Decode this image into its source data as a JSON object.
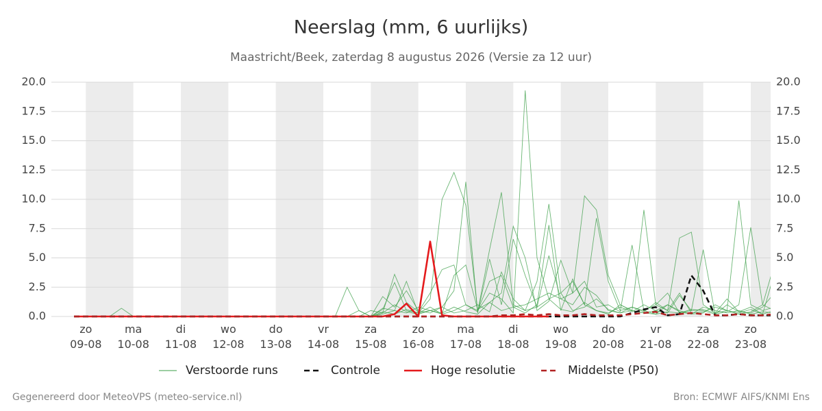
{
  "chart_data": {
    "type": "line",
    "title": "Neerslag (mm, 6 uurlijks)",
    "subtitle": "Maastricht/Beek, zaterdag  8 augustus 2026 (Versie za 12 uur)",
    "footer_left": "Gegenereerd door MeteoVPS (meteo-service.nl)",
    "footer_right": "Bron: ECMWF AIFS/KNMI Ens",
    "categories": [
      null,
      "zo\n09-08",
      null,
      null,
      null,
      "ma\n10-08",
      null,
      null,
      null,
      "di\n11-08",
      null,
      null,
      null,
      "wo\n12-08",
      null,
      null,
      null,
      "do\n13-08",
      null,
      null,
      null,
      "vr\n14-08",
      null,
      null,
      null,
      "za\n15-08",
      null,
      null,
      null,
      "zo\n16-08",
      null,
      null,
      null,
      "ma\n17-08",
      null,
      null,
      null,
      "di\n18-08",
      null,
      null,
      null,
      "wo\n19-08",
      null,
      null,
      null,
      "do\n20-08",
      null,
      null,
      null,
      "vr\n21-08",
      null,
      null,
      null,
      "za\n22-08",
      null,
      null,
      null,
      "zo\n23-08",
      null,
      null
    ],
    "ylim": [
      0,
      20
    ],
    "yticks": [
      {
        "value": 0,
        "label": "0.0"
      },
      2.5,
      {
        "value": 5,
        "label": "5.0"
      },
      7.5,
      {
        "value": 10,
        "label": "10.0"
      },
      12.5,
      {
        "value": 15,
        "label": "15.0"
      },
      17.5,
      {
        "value": 20,
        "label": "20.0"
      }
    ],
    "grid": true,
    "ensemble": {
      "name": "Verstoorde runs",
      "color": "#3a9e45",
      "members": [
        [
          0,
          0,
          0,
          0,
          0,
          0,
          0,
          0,
          0,
          0,
          0,
          0,
          0,
          0,
          0,
          0,
          0,
          0,
          0,
          0,
          0,
          0,
          0,
          0,
          0,
          0.5,
          0.3,
          3.6,
          1.2,
          0.4,
          2.0,
          4.0,
          4.4,
          1.0,
          0.5,
          2.0,
          1.5,
          0.3,
          19.3,
          5.0,
          1.5,
          2.0,
          3.0,
          1.0,
          0.5,
          0.2,
          1.0,
          0.5,
          0.3,
          0.2,
          1.0,
          0.5,
          0.2,
          0.3,
          1.0,
          0.5,
          0.2,
          0.4,
          1.0,
          0.5
        ],
        [
          0,
          0,
          0,
          0,
          0.7,
          0,
          0,
          0,
          0,
          0,
          0,
          0,
          0,
          0,
          0,
          0,
          0,
          0,
          0,
          0,
          0,
          0,
          0,
          0,
          0.5,
          0,
          0.7,
          0.5,
          3.0,
          0.3,
          1.5,
          10.0,
          12.3,
          9.5,
          0.5,
          3.0,
          3.5,
          0.8,
          1.0,
          1.5,
          2.0,
          1.5,
          1.0,
          2.5,
          1.8,
          0.5,
          0.3,
          0.8,
          0.5,
          0.2,
          0.4,
          0.3,
          0.6,
          0.5,
          0.2,
          1.0,
          0.4,
          0.3,
          0.8,
          2.0
        ],
        [
          0,
          0,
          0,
          0,
          0,
          0,
          0,
          0,
          0,
          0,
          0,
          0,
          0,
          0,
          0,
          0,
          0,
          0,
          0,
          0,
          0,
          0,
          0,
          2.5,
          0.5,
          0,
          1.7,
          0.8,
          2.2,
          0.5,
          0.3,
          0.8,
          2.2,
          11.5,
          0.3,
          4.9,
          1.0,
          6.6,
          3.5,
          0.8,
          5.2,
          1.5,
          2.0,
          10.3,
          9.1,
          3.5,
          1.0,
          0.5,
          0.3,
          0.5,
          1.0,
          0.4,
          0.2,
          0.8,
          0.5,
          0.3,
          0.5,
          0.2,
          0.4,
          0.3
        ],
        [
          0,
          0,
          0,
          0,
          0,
          0,
          0,
          0,
          0,
          0,
          0,
          0,
          0,
          0,
          0,
          0,
          0,
          0,
          0,
          0,
          0,
          0,
          0,
          0,
          0,
          0,
          0.6,
          2.9,
          0.5,
          0.3,
          0.8,
          0.2,
          0.5,
          1.0,
          0.4,
          5.7,
          10.6,
          1.0,
          0.5,
          3.0,
          9.6,
          2.0,
          0.5,
          0.8,
          1.5,
          0.6,
          0.3,
          0.5,
          9.1,
          1.0,
          0.5,
          2.0,
          0.3,
          0.4,
          0.8,
          0.5,
          0.3,
          0.6,
          0.2,
          0.5
        ],
        [
          0,
          0,
          0,
          0,
          0,
          0,
          0,
          0,
          0,
          0,
          0,
          0,
          0,
          0,
          0,
          0,
          0,
          0,
          0,
          0,
          0,
          0,
          0,
          0,
          0,
          0,
          0.3,
          1.0,
          0.4,
          0.2,
          0.5,
          0.3,
          0.8,
          0.4,
          0.2,
          1.2,
          0.5,
          0.8,
          0.3,
          1.0,
          7.8,
          0.5,
          3.2,
          1.0,
          8.4,
          3.0,
          0.5,
          0.8,
          0.4,
          1.2,
          0.5,
          6.7,
          7.2,
          1.0,
          0.3,
          0.5,
          9.9,
          1.0,
          0.5,
          0.8
        ],
        [
          0,
          0,
          0,
          0,
          0,
          0,
          0,
          0,
          0,
          0,
          0,
          0,
          0,
          0,
          0,
          0,
          0,
          0,
          0,
          0,
          0,
          0,
          0,
          0,
          0,
          0,
          0.2,
          0.5,
          0.3,
          0.8,
          0.5,
          0.2,
          3.5,
          4.4,
          0.6,
          1.2,
          2.0,
          7.7,
          5.0,
          0.5,
          1.3,
          4.8,
          2.0,
          3.0,
          0.8,
          1.0,
          0.4,
          6.1,
          0.5,
          1.0,
          2.0,
          0.3,
          0.5,
          5.7,
          0.2,
          0.4,
          1.0,
          7.6,
          1.0,
          4.5
        ],
        [
          0,
          0,
          0,
          0,
          0,
          0,
          0,
          0,
          0,
          0,
          0,
          0,
          0,
          0,
          0,
          0,
          0,
          0,
          0,
          0,
          0,
          0,
          0,
          0,
          0,
          0,
          0.4,
          0.2,
          0.6,
          0.3,
          0.5,
          0.8,
          0.3,
          0.5,
          1.0,
          0.4,
          3.8,
          1.5,
          0.5,
          0.8,
          1.5,
          0.6,
          0.4,
          1.2,
          0.5,
          0.3,
          0.8,
          0.4,
          1.0,
          0.5,
          0.3,
          1.8,
          0.5,
          0.6,
          0.3,
          1.5,
          0.4,
          0.8,
          0.2,
          3.7
        ]
      ]
    },
    "series": [
      {
        "name": "Controle",
        "color": "#111111",
        "dashed": true,
        "values": [
          0,
          0,
          0,
          0,
          0,
          0,
          0,
          0,
          0,
          0,
          0,
          0,
          0,
          0,
          0,
          0,
          0,
          0,
          0,
          0,
          0,
          0,
          0,
          0,
          0,
          0,
          0,
          0,
          0,
          0,
          0,
          0,
          0,
          0,
          0,
          0,
          0,
          0,
          0,
          0,
          0,
          0,
          0,
          0,
          0,
          0,
          0,
          0.3,
          0.6,
          0.8,
          0.1,
          0.2,
          3.5,
          2.2,
          0.1,
          0.1,
          0.2,
          0.1,
          0.1,
          0.1
        ]
      },
      {
        "name": "Hoge resolutie",
        "color": "#e41a1c",
        "dashed": false,
        "values": [
          0,
          0,
          0,
          0,
          0,
          0,
          0,
          0,
          0,
          0,
          0,
          0,
          0,
          0,
          0,
          0,
          0,
          0,
          0,
          0,
          0,
          0,
          0,
          0,
          0,
          0,
          0,
          0.2,
          1.1,
          0,
          6.4,
          0.1,
          0,
          0,
          0,
          0,
          0,
          0,
          0,
          0,
          0,
          null,
          null,
          null,
          null,
          null,
          null,
          null,
          null,
          null,
          null,
          null,
          null,
          null,
          null,
          null,
          null,
          null,
          null,
          null
        ]
      },
      {
        "name": "Middelste (P50)",
        "color": "#b22222",
        "dashed": true,
        "values": [
          0,
          0,
          0,
          0,
          0,
          0,
          0,
          0,
          0,
          0,
          0,
          0,
          0,
          0,
          0,
          0,
          0,
          0,
          0,
          0,
          0,
          0,
          0,
          0,
          0,
          0,
          0,
          0,
          0,
          0,
          0,
          0,
          0,
          0,
          0,
          0,
          0.1,
          0.1,
          0.2,
          0.1,
          0.2,
          0.1,
          0.1,
          0.2,
          0.1,
          0.1,
          0.1,
          0.2,
          0.3,
          0.4,
          0.1,
          0.2,
          0.3,
          0.2,
          0.1,
          0.1,
          0.2,
          0.1,
          0.1,
          0.2
        ]
      }
    ]
  }
}
